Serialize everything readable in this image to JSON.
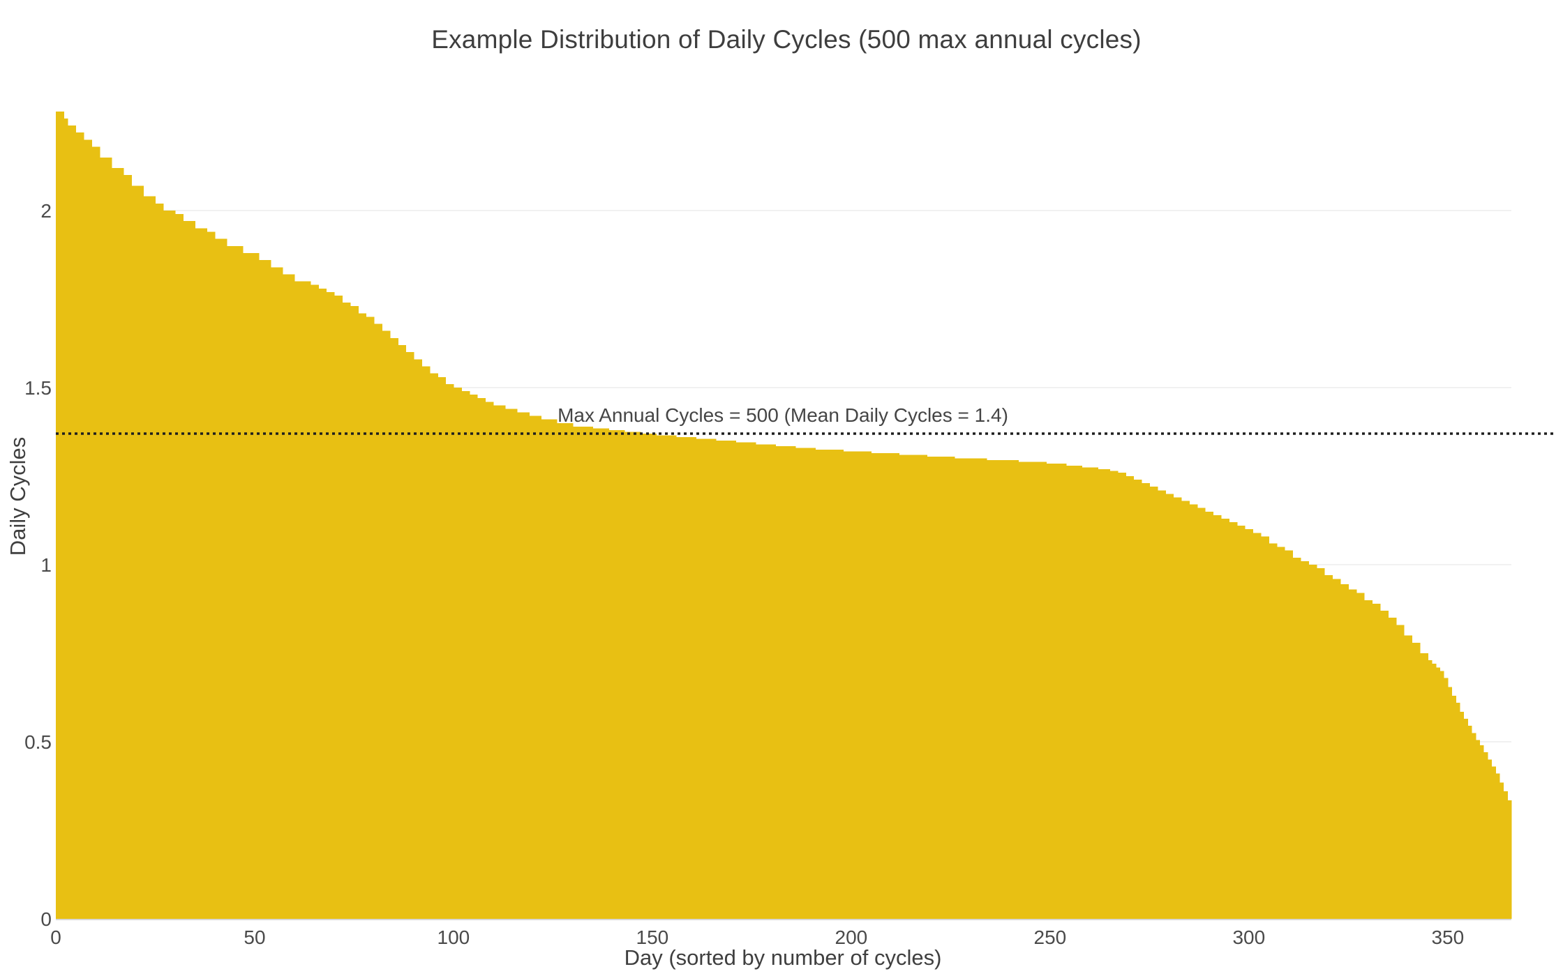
{
  "page": {
    "background": "#ffffff"
  },
  "chart_data": {
    "type": "bar",
    "title": "Example Distribution of Daily Cycles (500 max annual cycles)",
    "xlabel": "Day (sorted by number of cycles)",
    "ylabel": "Daily Cycles",
    "x_ticks": [
      0,
      50,
      100,
      150,
      200,
      250,
      300,
      350
    ],
    "y_ticks": [
      0,
      0.5,
      1,
      1.5,
      2
    ],
    "xlim": [
      0,
      366
    ],
    "ylim": [
      0,
      2.3
    ],
    "grid": "horizontal",
    "legend": "none",
    "bar_color": "#E8C013",
    "reference_line": {
      "value": 1.37,
      "label": "Max Annual Cycles = 500 (Mean Daily Cycles = 1.4)",
      "style": "dotted"
    },
    "values": [
      2.28,
      2.28,
      2.26,
      2.24,
      2.24,
      2.22,
      2.22,
      2.2,
      2.2,
      2.18,
      2.18,
      2.15,
      2.15,
      2.15,
      2.12,
      2.12,
      2.12,
      2.1,
      2.1,
      2.07,
      2.07,
      2.07,
      2.04,
      2.04,
      2.04,
      2.02,
      2.02,
      2.0,
      2.0,
      2.0,
      1.99,
      1.99,
      1.97,
      1.97,
      1.97,
      1.95,
      1.95,
      1.95,
      1.94,
      1.94,
      1.92,
      1.92,
      1.92,
      1.9,
      1.9,
      1.9,
      1.9,
      1.88,
      1.88,
      1.88,
      1.88,
      1.86,
      1.86,
      1.86,
      1.84,
      1.84,
      1.84,
      1.82,
      1.82,
      1.82,
      1.8,
      1.8,
      1.8,
      1.8,
      1.79,
      1.79,
      1.78,
      1.78,
      1.77,
      1.77,
      1.76,
      1.76,
      1.74,
      1.74,
      1.73,
      1.73,
      1.71,
      1.71,
      1.7,
      1.7,
      1.68,
      1.68,
      1.66,
      1.66,
      1.64,
      1.64,
      1.62,
      1.62,
      1.6,
      1.6,
      1.58,
      1.58,
      1.56,
      1.56,
      1.54,
      1.54,
      1.53,
      1.53,
      1.51,
      1.51,
      1.5,
      1.5,
      1.49,
      1.49,
      1.48,
      1.48,
      1.47,
      1.47,
      1.46,
      1.46,
      1.45,
      1.45,
      1.45,
      1.44,
      1.44,
      1.44,
      1.43,
      1.43,
      1.43,
      1.42,
      1.42,
      1.42,
      1.41,
      1.41,
      1.41,
      1.41,
      1.4,
      1.4,
      1.4,
      1.4,
      1.39,
      1.39,
      1.39,
      1.39,
      1.39,
      1.385,
      1.385,
      1.385,
      1.385,
      1.38,
      1.38,
      1.38,
      1.38,
      1.375,
      1.375,
      1.375,
      1.375,
      1.37,
      1.37,
      1.37,
      1.37,
      1.365,
      1.365,
      1.365,
      1.365,
      1.365,
      1.36,
      1.36,
      1.36,
      1.36,
      1.36,
      1.355,
      1.355,
      1.355,
      1.355,
      1.355,
      1.35,
      1.35,
      1.35,
      1.35,
      1.35,
      1.345,
      1.345,
      1.345,
      1.345,
      1.345,
      1.34,
      1.34,
      1.34,
      1.34,
      1.34,
      1.335,
      1.335,
      1.335,
      1.335,
      1.335,
      1.33,
      1.33,
      1.33,
      1.33,
      1.33,
      1.325,
      1.325,
      1.325,
      1.325,
      1.325,
      1.325,
      1.325,
      1.32,
      1.32,
      1.32,
      1.32,
      1.32,
      1.32,
      1.32,
      1.315,
      1.315,
      1.315,
      1.315,
      1.315,
      1.315,
      1.315,
      1.31,
      1.31,
      1.31,
      1.31,
      1.31,
      1.31,
      1.31,
      1.305,
      1.305,
      1.305,
      1.305,
      1.305,
      1.305,
      1.305,
      1.3,
      1.3,
      1.3,
      1.3,
      1.3,
      1.3,
      1.3,
      1.3,
      1.295,
      1.295,
      1.295,
      1.295,
      1.295,
      1.295,
      1.295,
      1.295,
      1.29,
      1.29,
      1.29,
      1.29,
      1.29,
      1.29,
      1.29,
      1.285,
      1.285,
      1.285,
      1.285,
      1.285,
      1.28,
      1.28,
      1.28,
      1.28,
      1.275,
      1.275,
      1.275,
      1.275,
      1.27,
      1.27,
      1.27,
      1.265,
      1.265,
      1.26,
      1.26,
      1.25,
      1.25,
      1.24,
      1.24,
      1.23,
      1.23,
      1.22,
      1.22,
      1.21,
      1.21,
      1.2,
      1.2,
      1.19,
      1.19,
      1.18,
      1.18,
      1.17,
      1.17,
      1.16,
      1.16,
      1.15,
      1.15,
      1.14,
      1.14,
      1.13,
      1.13,
      1.12,
      1.12,
      1.11,
      1.11,
      1.1,
      1.1,
      1.09,
      1.09,
      1.08,
      1.08,
      1.06,
      1.06,
      1.05,
      1.05,
      1.04,
      1.04,
      1.02,
      1.02,
      1.01,
      1.01,
      1.0,
      1.0,
      0.99,
      0.99,
      0.97,
      0.97,
      0.96,
      0.96,
      0.945,
      0.945,
      0.93,
      0.93,
      0.92,
      0.92,
      0.9,
      0.9,
      0.89,
      0.89,
      0.87,
      0.87,
      0.85,
      0.85,
      0.83,
      0.83,
      0.8,
      0.8,
      0.78,
      0.78,
      0.75,
      0.75,
      0.73,
      0.72,
      0.71,
      0.7,
      0.68,
      0.655,
      0.63,
      0.61,
      0.585,
      0.565,
      0.545,
      0.525,
      0.505,
      0.49,
      0.47,
      0.45,
      0.43,
      0.41,
      0.385,
      0.36,
      0.335
    ]
  },
  "colors": {
    "bar": "#E8C013",
    "grid_line": "#F1F1F1",
    "axis_line": "#D7D7D7",
    "reference_line": "#1F1F1F",
    "title_text": "#3E3E3E",
    "axis_title_text": "#3F3F3F",
    "tick_text": "#4A4A4A",
    "annotation_text": "#454545"
  }
}
